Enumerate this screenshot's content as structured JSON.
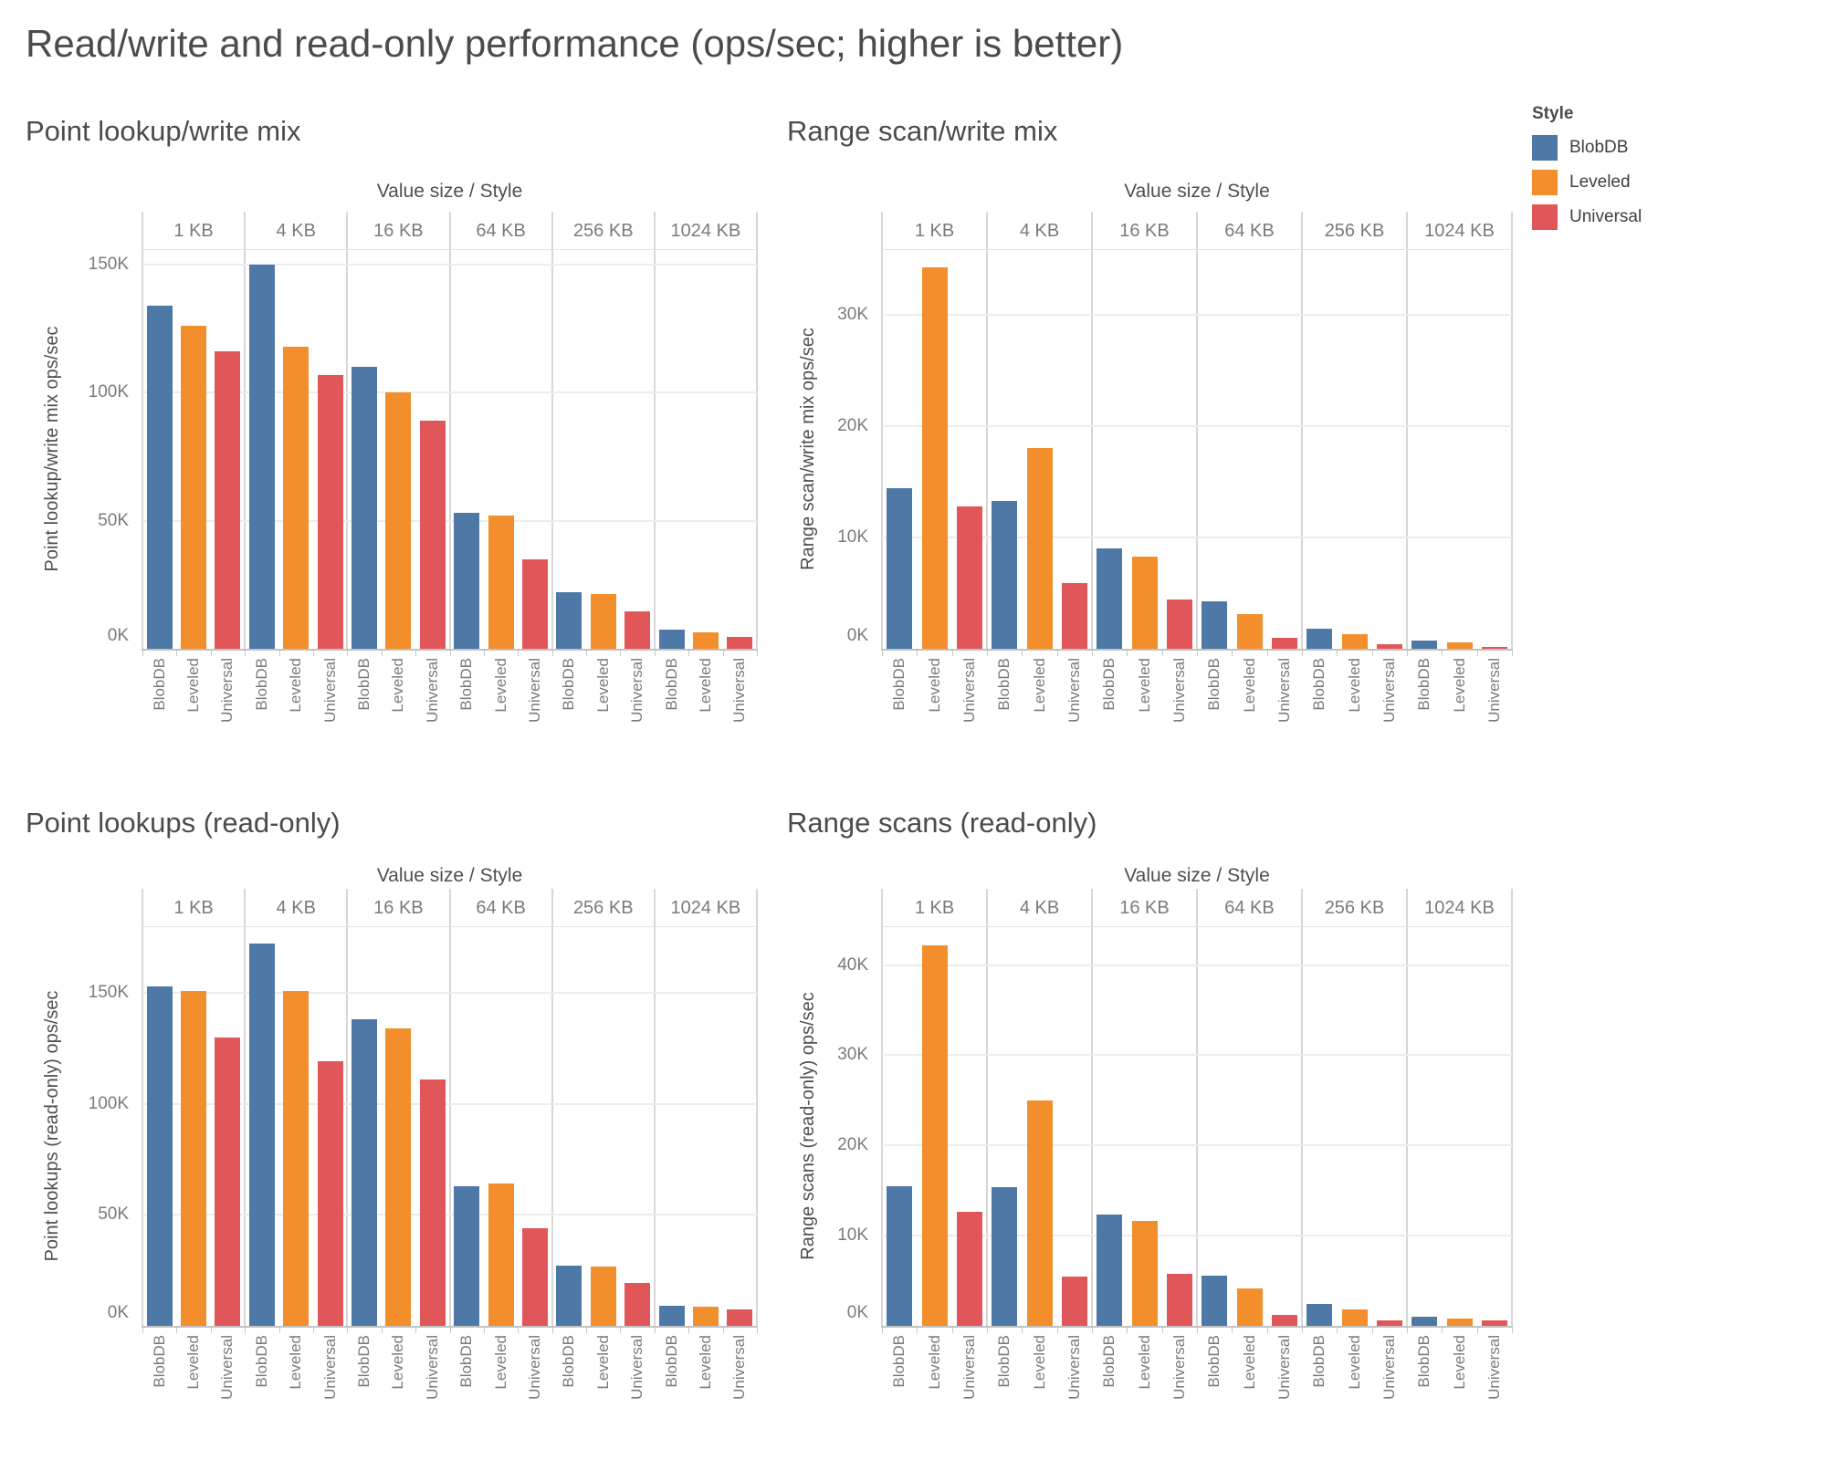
{
  "title": "Read/write and read-only performance (ops/sec; higher is better)",
  "legend": {
    "title": "Style",
    "items": [
      {
        "label": "BlobDB",
        "color": "#4e79a7"
      },
      {
        "label": "Leveled",
        "color": "#f28e2b"
      },
      {
        "label": "Universal",
        "color": "#e15759"
      }
    ]
  },
  "chart_data": [
    {
      "type": "bar",
      "title": "Point lookup/write mix",
      "col_axis_title": "Value size  /  Style",
      "ylabel": "Point lookup/write mix ops/sec",
      "unit": "K ops/sec",
      "categories": [
        "1 KB",
        "4 KB",
        "16 KB",
        "64 KB",
        "256 KB",
        "1024 KB"
      ],
      "series": [
        {
          "name": "BlobDB",
          "color": "#4e79a7",
          "values": [
            134,
            150,
            110,
            53,
            22,
            7.5
          ]
        },
        {
          "name": "Leveled",
          "color": "#f28e2b",
          "values": [
            126,
            118,
            100,
            52,
            21.5,
            6.3
          ]
        },
        {
          "name": "Universal",
          "color": "#e15759",
          "values": [
            116,
            107,
            89,
            35,
            14.5,
            4.8
          ]
        }
      ],
      "ylim": [
        0,
        156
      ],
      "yticks": [
        0,
        50,
        100,
        150
      ],
      "ytick_labels": [
        "0K",
        "50K",
        "100K",
        "150K"
      ],
      "grid": true
    },
    {
      "type": "bar",
      "title": "Range scan/write mix",
      "col_axis_title": "Value size  /  Style",
      "ylabel": "Range scan/write mix ops/sec",
      "unit": "K ops/sec",
      "categories": [
        "1 KB",
        "4 KB",
        "16 KB",
        "64 KB",
        "256 KB",
        "1024 KB"
      ],
      "series": [
        {
          "name": "BlobDB",
          "color": "#4e79a7",
          "values": [
            14.4,
            13.3,
            9,
            4.3,
            1.8,
            0.7
          ]
        },
        {
          "name": "Leveled",
          "color": "#f28e2b",
          "values": [
            34.3,
            18,
            8.3,
            3.1,
            1.3,
            0.55
          ]
        },
        {
          "name": "Universal",
          "color": "#e15759",
          "values": [
            12.8,
            5.9,
            4.4,
            1,
            0.4,
            0.2
          ]
        }
      ],
      "ylim": [
        0,
        35.9
      ],
      "yticks": [
        0,
        10,
        20,
        30
      ],
      "ytick_labels": [
        "0K",
        "10K",
        "20K",
        "30K"
      ],
      "grid": true
    },
    {
      "type": "bar",
      "title": "Point lookups (read-only)",
      "col_axis_title": "Value size  /  Style",
      "ylabel": "Point lookups (read-only) ops/sec",
      "unit": "K ops/sec",
      "categories": [
        "1 KB",
        "4 KB",
        "16 KB",
        "64 KB",
        "256 KB",
        "1024 KB"
      ],
      "series": [
        {
          "name": "BlobDB",
          "color": "#4e79a7",
          "values": [
            153,
            172,
            138,
            63,
            27,
            9
          ]
        },
        {
          "name": "Leveled",
          "color": "#f28e2b",
          "values": [
            151,
            151,
            134,
            64,
            26.8,
            8.6
          ]
        },
        {
          "name": "Universal",
          "color": "#e15759",
          "values": [
            130,
            119,
            111,
            44,
            19.3,
            7.2
          ]
        }
      ],
      "ylim": [
        0,
        180
      ],
      "yticks": [
        0,
        50,
        100,
        150
      ],
      "ytick_labels": [
        "0K",
        "50K",
        "100K",
        "150K"
      ],
      "grid": true
    },
    {
      "type": "bar",
      "title": "Range scans (read-only)",
      "col_axis_title": "Value size  /  Style",
      "ylabel": "Range scans (read-only) ops/sec",
      "unit": "K ops/sec",
      "categories": [
        "1 KB",
        "4 KB",
        "16 KB",
        "64 KB",
        "256 KB",
        "1024 KB"
      ],
      "series": [
        {
          "name": "BlobDB",
          "color": "#4e79a7",
          "values": [
            15.5,
            15.4,
            12.3,
            5.6,
            2.4,
            1
          ]
        },
        {
          "name": "Leveled",
          "color": "#f28e2b",
          "values": [
            42.2,
            25,
            11.6,
            4.1,
            1.8,
            0.8
          ]
        },
        {
          "name": "Universal",
          "color": "#e15759",
          "values": [
            12.6,
            5.5,
            5.8,
            1.2,
            0.6,
            0.6
          ]
        }
      ],
      "ylim": [
        0,
        44.3
      ],
      "yticks": [
        0,
        10,
        20,
        30,
        40
      ],
      "ytick_labels": [
        "0K",
        "10K",
        "20K",
        "30K",
        "40K"
      ],
      "grid": true
    }
  ]
}
